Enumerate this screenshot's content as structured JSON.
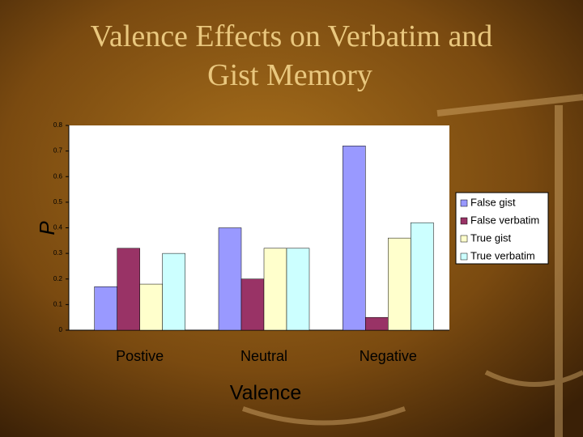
{
  "chart_data": {
    "type": "bar",
    "title": "Valence Effects on Verbatim and Gist Memory",
    "ylabel": "P",
    "xlabel": "Valence",
    "categories": [
      "Postive",
      "Neutral",
      "Negative"
    ],
    "series": [
      {
        "name": "False gist",
        "color": "#9999ff",
        "values": [
          0.17,
          0.4,
          0.72
        ]
      },
      {
        "name": "False verbatim",
        "color": "#993366",
        "values": [
          0.32,
          0.2,
          0.05
        ]
      },
      {
        "name": "True gist",
        "color": "#ffffcc",
        "values": [
          0.18,
          0.32,
          0.36
        ]
      },
      {
        "name": "True verbatim",
        "color": "#ccffff",
        "values": [
          0.3,
          0.32,
          0.42
        ]
      }
    ],
    "ylim": [
      0,
      0.8
    ],
    "yticks": [
      0,
      0.1,
      0.2,
      0.3,
      0.4,
      0.5,
      0.6,
      0.7,
      0.8
    ],
    "legend": "right"
  }
}
